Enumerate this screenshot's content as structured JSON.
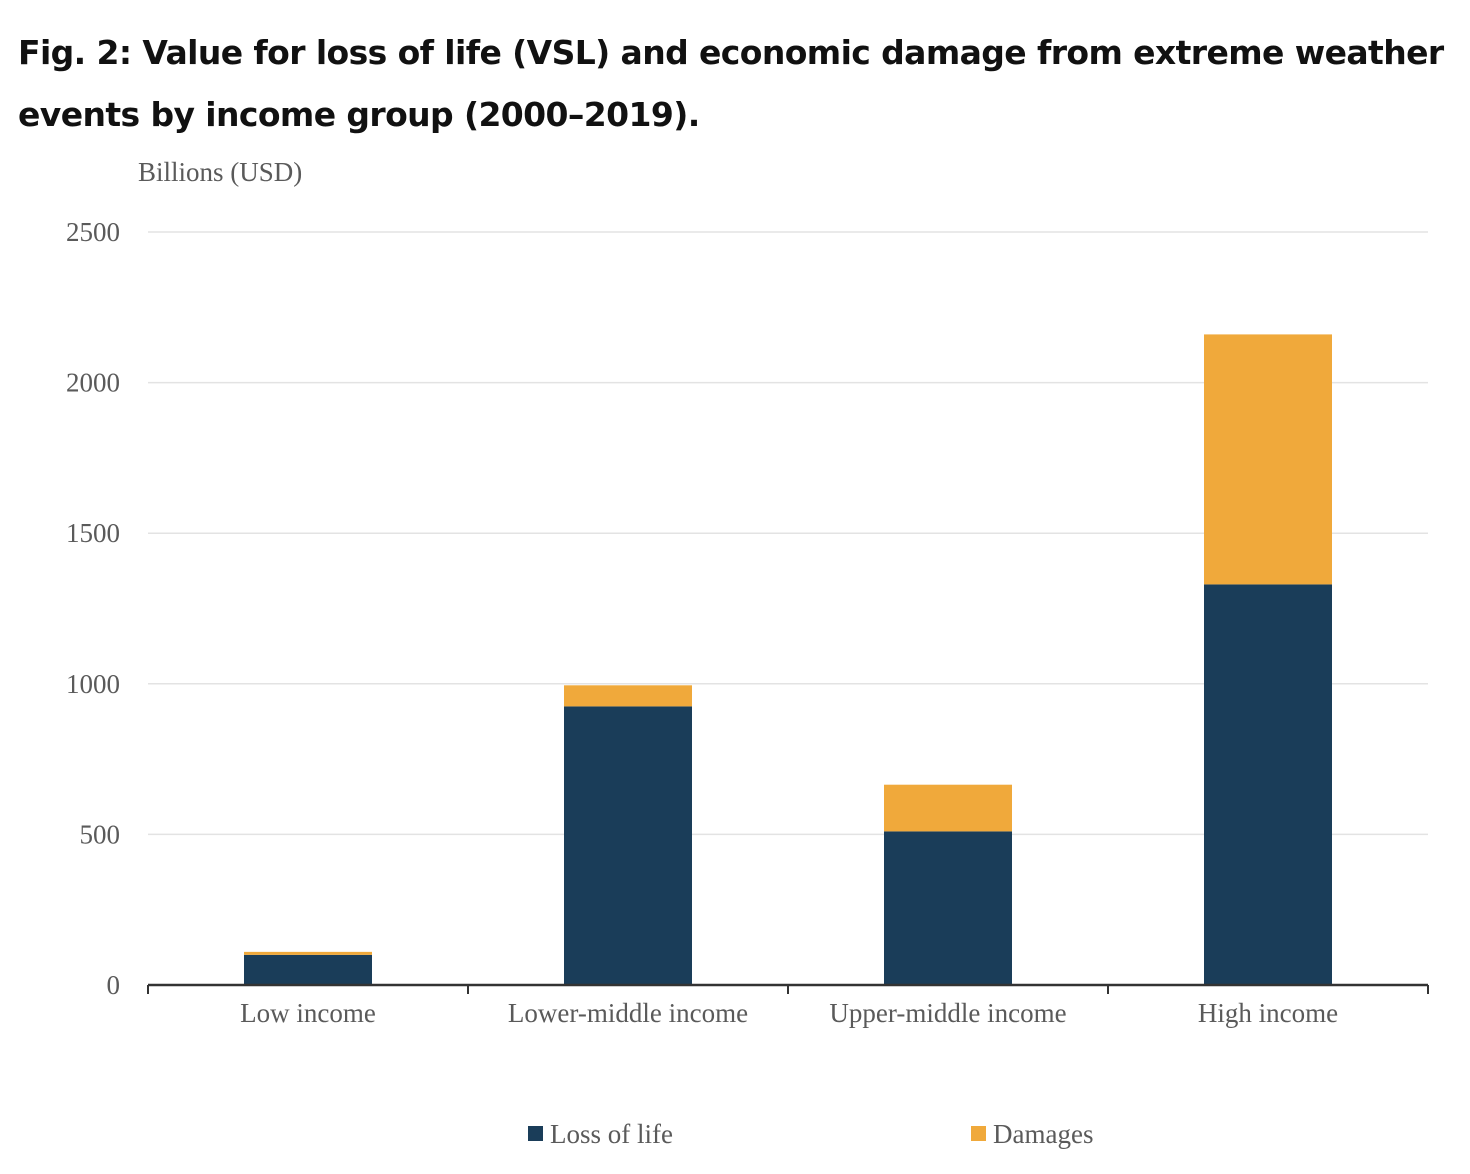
{
  "figure": {
    "title": "Fig. 2: Value for loss of life (VSL) and economic damage from extreme weather events by income group (2000–2019)."
  },
  "chart_data": {
    "type": "bar",
    "stacked": true,
    "ylabel": "Billions (USD)",
    "xlabel": "",
    "ylim": [
      0,
      2500
    ],
    "yticks": [
      0,
      500,
      1000,
      1500,
      2000,
      2500
    ],
    "grid": true,
    "legend_position": "bottom",
    "categories": [
      "Low income",
      "Lower-middle income",
      "Upper-middle income",
      "High income"
    ],
    "series": [
      {
        "name": "Loss of life",
        "color": "#1a3d59",
        "values": [
          100,
          925,
          510,
          1330
        ]
      },
      {
        "name": "Damages",
        "color": "#f0a93b",
        "values": [
          10,
          70,
          155,
          830
        ]
      }
    ]
  }
}
